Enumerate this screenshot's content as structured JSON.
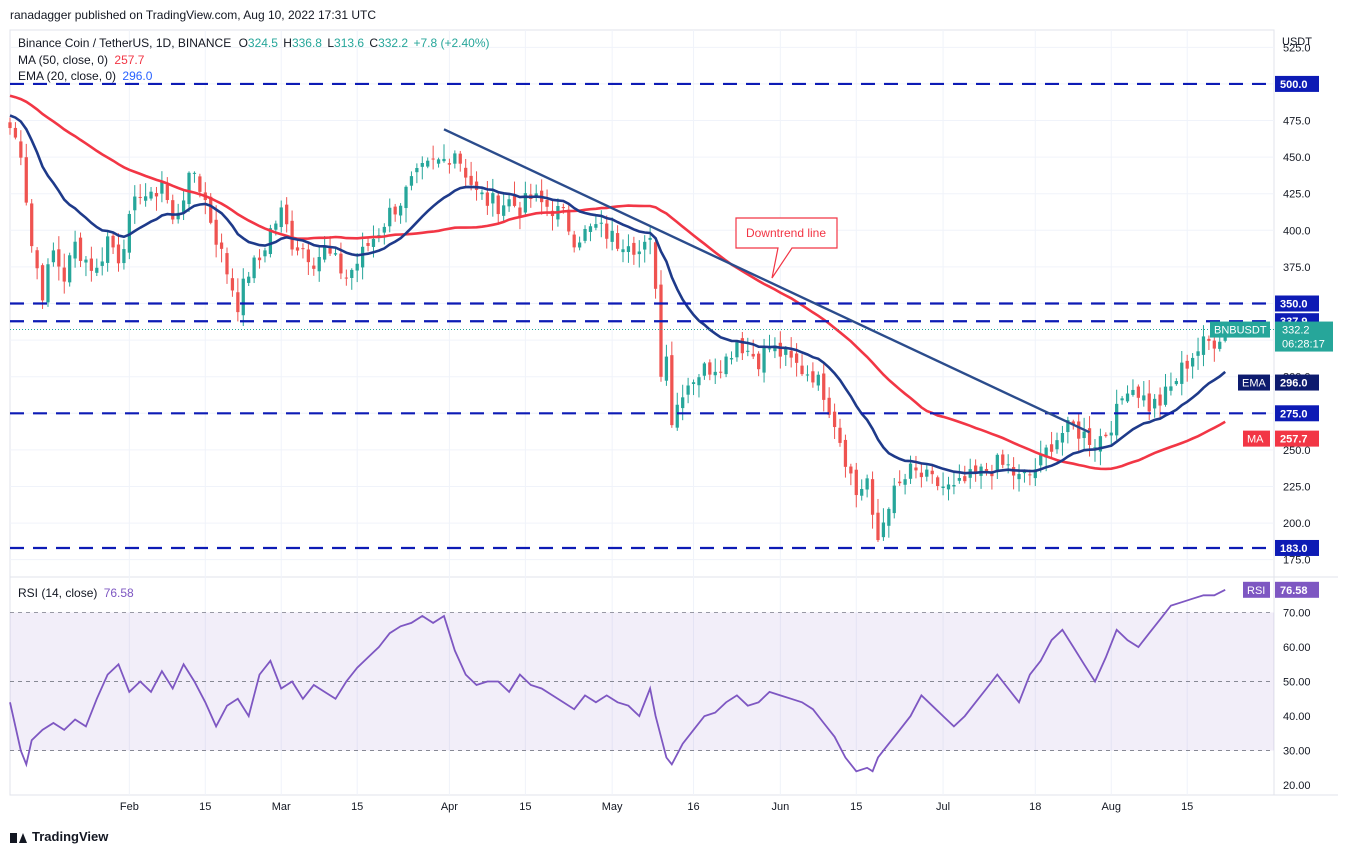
{
  "header": {
    "publisher": "ranadagger published on TradingView.com, Aug 10, 2022 17:31 UTC",
    "symbol": "Binance Coin / TetherUS, 1D, BINANCE",
    "o_label": "O",
    "o": "324.5",
    "h_label": "H",
    "h": "336.8",
    "l_label": "L",
    "l": "313.6",
    "c_label": "C",
    "c": "332.2",
    "change": "+7.8 (+2.40%)",
    "ma_label": "MA (50, close, 0)",
    "ma_value": "257.7",
    "ema_label": "EMA (20, close, 0)",
    "ema_value": "296.0",
    "rsi_label": "RSI (14, close)",
    "rsi_value": "76.58"
  },
  "currency": "USDT",
  "annotation": "Downtrend line",
  "footer": {
    "brand": "TradingView"
  },
  "colors": {
    "up": "#26a69a",
    "down": "#ef5350",
    "ema": "#1e3a8a",
    "ma": "#f23645",
    "rsi": "#7e57c2",
    "hline": "#0d1bb5",
    "trend": "#2b4c8c"
  },
  "chart_data": [
    {
      "type": "candlestick",
      "title": "Binance Coin / TetherUS, 1D, BINANCE",
      "ylim": [
        170,
        530
      ],
      "y_ticks": [
        "175.0",
        "200.0",
        "225.0",
        "250.0",
        "275.0",
        "300.0",
        "325.0",
        "350.0",
        "375.0",
        "400.0",
        "425.0",
        "450.0",
        "475.0",
        "500.0",
        "525.0"
      ],
      "x_ticks": [
        "Feb",
        "15",
        "Mar",
        "15",
        "Apr",
        "15",
        "May",
        "16",
        "Jun",
        "15",
        "Jul",
        "18",
        "Aug",
        "15"
      ],
      "x_tick_days": [
        22,
        36,
        50,
        64,
        81,
        95,
        111,
        126,
        142,
        156,
        172,
        189,
        203,
        217
      ],
      "horizontal_levels": [
        {
          "label": "500.0",
          "value": 500
        },
        {
          "label": "350.0",
          "value": 350
        },
        {
          "label": "337.9",
          "value": 337.9
        },
        {
          "label": "275.0",
          "value": 275
        },
        {
          "label": "183.0",
          "value": 183
        }
      ],
      "badges": [
        {
          "label": "BNBUSDT",
          "value_label": "332.2",
          "sub_label": "06:28:17",
          "value": 332.2
        },
        {
          "label": "EMA",
          "value_label": "296.0",
          "value": 296.0
        },
        {
          "label": "MA",
          "value_label": "257.7",
          "value": 257.7
        }
      ],
      "current_price": 332.2,
      "downtrend_line": {
        "from": {
          "day": 80,
          "price": 469
        },
        "to": {
          "day": 199,
          "price": 262
        }
      },
      "close_anchors": [
        [
          0,
          470
        ],
        [
          2,
          455
        ],
        [
          4,
          390
        ],
        [
          6,
          358
        ],
        [
          8,
          385
        ],
        [
          10,
          368
        ],
        [
          12,
          390
        ],
        [
          14,
          380
        ],
        [
          16,
          372
        ],
        [
          18,
          395
        ],
        [
          20,
          382
        ],
        [
          22,
          405
        ],
        [
          24,
          428
        ],
        [
          26,
          420
        ],
        [
          28,
          435
        ],
        [
          30,
          405
        ],
        [
          32,
          425
        ],
        [
          34,
          440
        ],
        [
          36,
          420
        ],
        [
          38,
          395
        ],
        [
          40,
          372
        ],
        [
          42,
          350
        ],
        [
          44,
          372
        ],
        [
          46,
          380
        ],
        [
          48,
          400
        ],
        [
          50,
          412
        ],
        [
          52,
          392
        ],
        [
          54,
          388
        ],
        [
          56,
          380
        ],
        [
          58,
          386
        ],
        [
          60,
          378
        ],
        [
          62,
          368
        ],
        [
          64,
          378
        ],
        [
          66,
          390
        ],
        [
          68,
          400
        ],
        [
          70,
          412
        ],
        [
          72,
          420
        ],
        [
          74,
          432
        ],
        [
          76,
          440
        ],
        [
          78,
          445
        ],
        [
          80,
          448
        ],
        [
          82,
          455
        ],
        [
          84,
          440
        ],
        [
          86,
          425
        ],
        [
          88,
          420
        ],
        [
          90,
          418
        ],
        [
          92,
          420
        ],
        [
          94,
          415
        ],
        [
          96,
          422
        ],
        [
          98,
          418
        ],
        [
          100,
          415
        ],
        [
          102,
          410
        ],
        [
          104,
          395
        ],
        [
          106,
          398
        ],
        [
          108,
          402
        ],
        [
          110,
          398
        ],
        [
          112,
          392
        ],
        [
          114,
          395
        ],
        [
          116,
          385
        ],
        [
          118,
          390
        ],
        [
          119,
          365
        ],
        [
          120,
          300
        ],
        [
          121,
          320
        ],
        [
          122,
          270
        ],
        [
          124,
          292
        ],
        [
          126,
          300
        ],
        [
          128,
          305
        ],
        [
          130,
          308
        ],
        [
          132,
          312
        ],
        [
          134,
          325
        ],
        [
          136,
          318
        ],
        [
          138,
          312
        ],
        [
          140,
          320
        ],
        [
          142,
          316
        ],
        [
          144,
          310
        ],
        [
          146,
          305
        ],
        [
          148,
          302
        ],
        [
          150,
          290
        ],
        [
          152,
          270
        ],
        [
          154,
          245
        ],
        [
          156,
          220
        ],
        [
          158,
          230
        ],
        [
          159,
          200
        ],
        [
          160,
          188
        ],
        [
          162,
          215
        ],
        [
          164,
          225
        ],
        [
          166,
          235
        ],
        [
          168,
          232
        ],
        [
          170,
          228
        ],
        [
          172,
          225
        ],
        [
          174,
          222
        ],
        [
          176,
          228
        ],
        [
          178,
          232
        ],
        [
          180,
          236
        ],
        [
          182,
          240
        ],
        [
          184,
          238
        ],
        [
          186,
          230
        ],
        [
          188,
          233
        ],
        [
          190,
          242
        ],
        [
          192,
          255
        ],
        [
          194,
          262
        ],
        [
          196,
          265
        ],
        [
          198,
          260
        ],
        [
          200,
          256
        ],
        [
          202,
          262
        ],
        [
          204,
          275
        ],
        [
          206,
          295
        ],
        [
          208,
          290
        ],
        [
          210,
          280
        ],
        [
          212,
          283
        ],
        [
          214,
          292
        ],
        [
          216,
          305
        ],
        [
          218,
          315
        ],
        [
          220,
          322
        ],
        [
          222,
          325
        ],
        [
          224,
          332.2
        ]
      ],
      "series": [
        {
          "name": "MA (50, close, 0)",
          "last": 257.7
        },
        {
          "name": "EMA (20, close, 0)",
          "last": 296.0
        }
      ]
    },
    {
      "type": "line",
      "title": "RSI (14, close)",
      "ylim": [
        18,
        80
      ],
      "y_ticks": [
        "20.00",
        "30.00",
        "40.00",
        "50.00",
        "60.00",
        "70.00"
      ],
      "bands": [
        30,
        50,
        70
      ],
      "last": 76.58,
      "values": [
        [
          0,
          44
        ],
        [
          2,
          30
        ],
        [
          3,
          26
        ],
        [
          4,
          33
        ],
        [
          6,
          36
        ],
        [
          8,
          38
        ],
        [
          10,
          36
        ],
        [
          12,
          39
        ],
        [
          14,
          37
        ],
        [
          16,
          45
        ],
        [
          18,
          52
        ],
        [
          20,
          55
        ],
        [
          22,
          47
        ],
        [
          24,
          50
        ],
        [
          26,
          47
        ],
        [
          28,
          53
        ],
        [
          30,
          48
        ],
        [
          32,
          55
        ],
        [
          34,
          50
        ],
        [
          36,
          44
        ],
        [
          38,
          37
        ],
        [
          40,
          43
        ],
        [
          42,
          45
        ],
        [
          44,
          40
        ],
        [
          46,
          52
        ],
        [
          48,
          56
        ],
        [
          50,
          48
        ],
        [
          52,
          50
        ],
        [
          54,
          45
        ],
        [
          56,
          49
        ],
        [
          58,
          47
        ],
        [
          60,
          45
        ],
        [
          62,
          50
        ],
        [
          64,
          54
        ],
        [
          66,
          57
        ],
        [
          68,
          60
        ],
        [
          70,
          64
        ],
        [
          72,
          66
        ],
        [
          74,
          67
        ],
        [
          76,
          69
        ],
        [
          78,
          67
        ],
        [
          80,
          69
        ],
        [
          82,
          59
        ],
        [
          84,
          52
        ],
        [
          86,
          49
        ],
        [
          88,
          50
        ],
        [
          90,
          50
        ],
        [
          92,
          47
        ],
        [
          94,
          52
        ],
        [
          96,
          49
        ],
        [
          98,
          48
        ],
        [
          100,
          46
        ],
        [
          102,
          44
        ],
        [
          104,
          42
        ],
        [
          106,
          46
        ],
        [
          108,
          44
        ],
        [
          110,
          46
        ],
        [
          112,
          44
        ],
        [
          114,
          43
        ],
        [
          116,
          40
        ],
        [
          118,
          48
        ],
        [
          119,
          40
        ],
        [
          120,
          34
        ],
        [
          121,
          28
        ],
        [
          122,
          26
        ],
        [
          124,
          32
        ],
        [
          126,
          36
        ],
        [
          128,
          40
        ],
        [
          130,
          41
        ],
        [
          132,
          44
        ],
        [
          134,
          46
        ],
        [
          136,
          43
        ],
        [
          138,
          44
        ],
        [
          140,
          47
        ],
        [
          142,
          46
        ],
        [
          144,
          45
        ],
        [
          146,
          44
        ],
        [
          148,
          42
        ],
        [
          150,
          38
        ],
        [
          152,
          34
        ],
        [
          154,
          28
        ],
        [
          156,
          24
        ],
        [
          158,
          25
        ],
        [
          159,
          24
        ],
        [
          160,
          28
        ],
        [
          162,
          32
        ],
        [
          164,
          36
        ],
        [
          166,
          40
        ],
        [
          168,
          46
        ],
        [
          170,
          43
        ],
        [
          172,
          40
        ],
        [
          174,
          37
        ],
        [
          176,
          40
        ],
        [
          178,
          44
        ],
        [
          180,
          48
        ],
        [
          182,
          52
        ],
        [
          184,
          48
        ],
        [
          186,
          44
        ],
        [
          188,
          52
        ],
        [
          190,
          56
        ],
        [
          192,
          62
        ],
        [
          194,
          65
        ],
        [
          196,
          60
        ],
        [
          198,
          55
        ],
        [
          200,
          50
        ],
        [
          202,
          57
        ],
        [
          204,
          65
        ],
        [
          206,
          62
        ],
        [
          208,
          60
        ],
        [
          210,
          64
        ],
        [
          212,
          68
        ],
        [
          214,
          72
        ],
        [
          216,
          73
        ],
        [
          218,
          74
        ],
        [
          220,
          75
        ],
        [
          222,
          75
        ],
        [
          224,
          76.58
        ]
      ]
    }
  ]
}
